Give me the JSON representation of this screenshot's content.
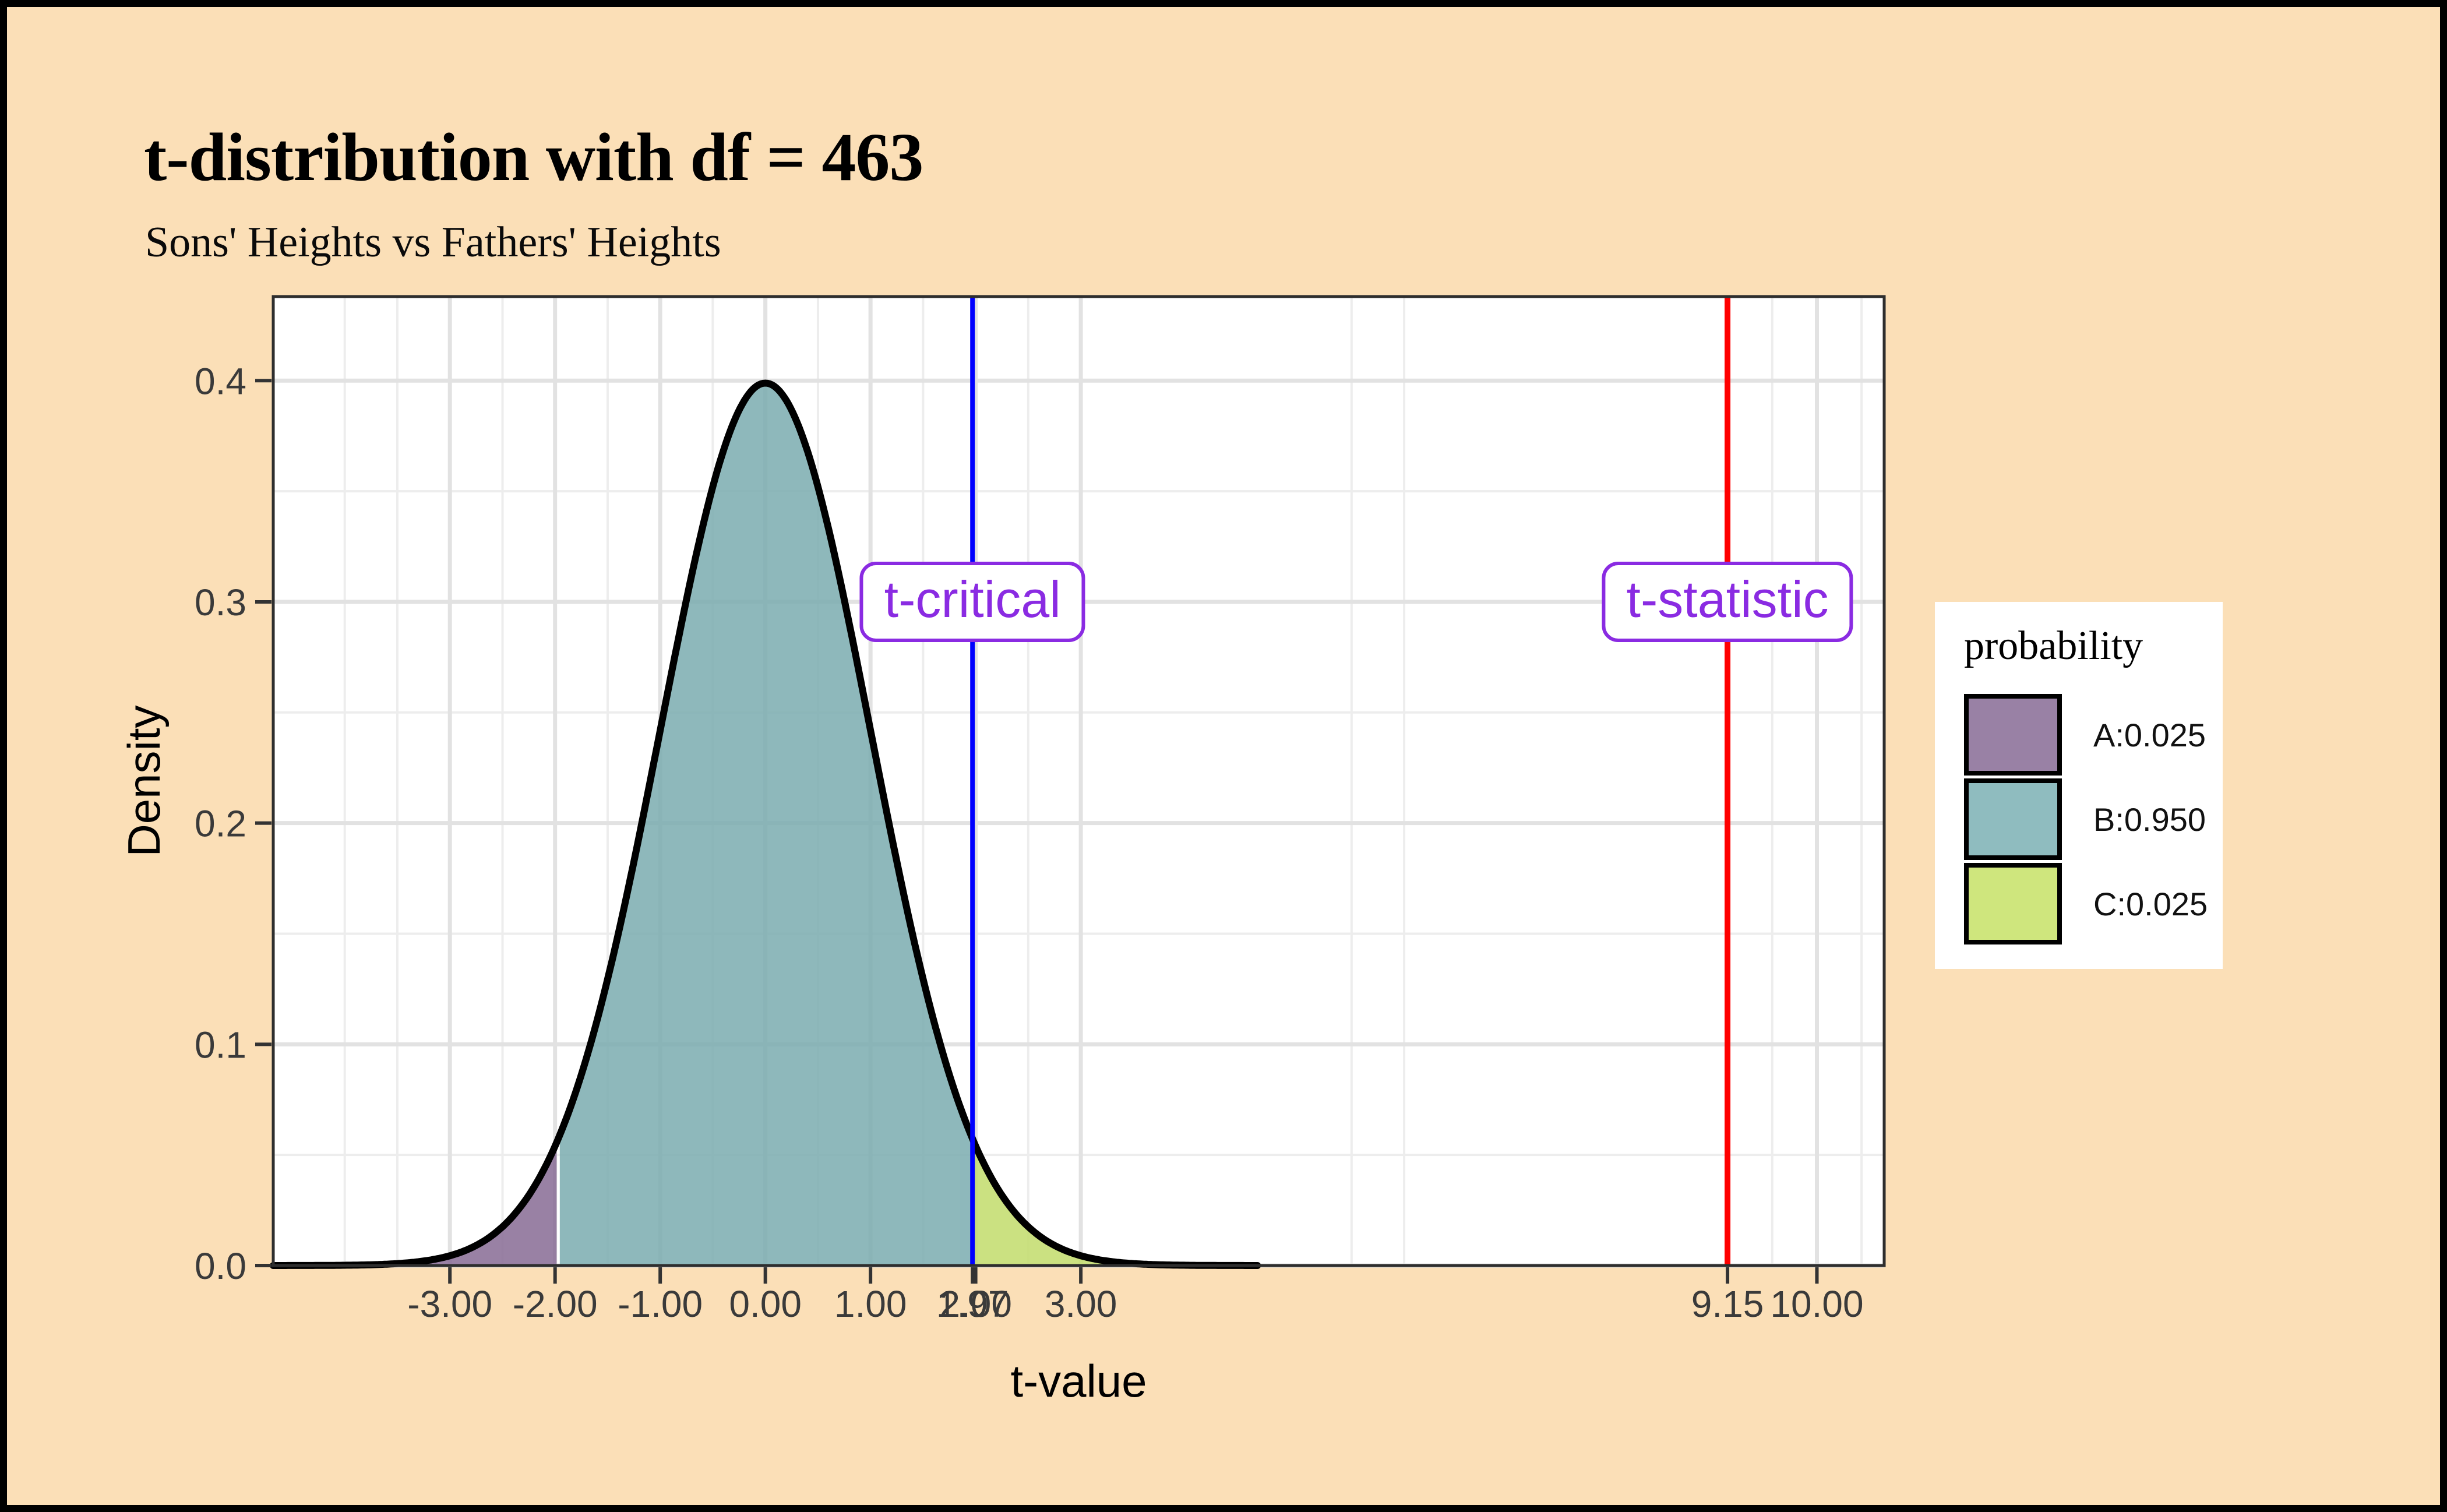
{
  "header": {
    "title": "t-distribution with df = 463",
    "subtitle": "Sons' Heights vs Fathers' Heights"
  },
  "legend": {
    "title": "probability",
    "items": [
      {
        "label": "A:0.025",
        "color": "#9981A5"
      },
      {
        "label": "B:0.950",
        "color": "#8FBCBF"
      },
      {
        "label": "C:0.025",
        "color": "#CFE67D"
      }
    ]
  },
  "chart_data": {
    "type": "area",
    "title": "t-distribution with df = 463",
    "subtitle": "Sons' Heights vs Fathers' Heights",
    "xlabel": "t-value",
    "ylabel": "Density",
    "xlim": [
      -4.68,
      10.64
    ],
    "ylim": [
      0,
      0.438
    ],
    "grid": "on",
    "legend_position": "right",
    "curve": {
      "distribution": "t",
      "df": 463,
      "mean": 0,
      "peak_density": 0.3989
    },
    "x_breaks": [
      {
        "t": -3,
        "label": "-3.00"
      },
      {
        "t": -2,
        "label": "-2.00"
      },
      {
        "t": -1,
        "label": "-1.00"
      },
      {
        "t": 0,
        "label": "0.00"
      },
      {
        "t": 1,
        "label": "1.00"
      },
      {
        "t": 1.97,
        "label": "1.97"
      },
      {
        "t": 2,
        "label": "2.00"
      },
      {
        "t": 3,
        "label": "3.00"
      },
      {
        "t": 9.15,
        "label": "9.15"
      },
      {
        "t": 10,
        "label": "10.00"
      }
    ],
    "x_minor_breaks": [
      -4,
      -3.5,
      -2.5,
      -1.5,
      -0.5,
      0.5,
      1.5,
      2.5,
      5.575,
      6.075,
      9.575,
      10.425
    ],
    "y_breaks": [
      {
        "d": 0.0,
        "label": "0.0"
      },
      {
        "d": 0.1,
        "label": "0.1"
      },
      {
        "d": 0.2,
        "label": "0.2"
      },
      {
        "d": 0.3,
        "label": "0.3"
      },
      {
        "d": 0.4,
        "label": "0.4"
      }
    ],
    "y_minor_breaks": [
      0.05,
      0.15,
      0.25,
      0.35
    ],
    "regions": [
      {
        "name": "A",
        "probability": 0.025,
        "from": -4.68,
        "to": -1.985,
        "fill": "#876B94"
      },
      {
        "name": "B",
        "probability": 0.95,
        "from": -1.955,
        "to": 1.955,
        "fill": "#7AABAF"
      },
      {
        "name": "C",
        "probability": 0.025,
        "from": 1.985,
        "to": 4.68,
        "fill": "#C2DC6B"
      }
    ],
    "region_fill_opacity": 0.85,
    "vlines": [
      {
        "t": 1.97,
        "color": "#0000FF",
        "width": 8,
        "label": "t-critical",
        "label_at_density": 0.3
      },
      {
        "t": 9.15,
        "color": "#FF0000",
        "width": 10,
        "label": "t-statistic",
        "label_at_density": 0.3
      }
    ],
    "colors": {
      "background": "#FBDFB7",
      "panel": "#FFFFFF",
      "panel_border": "#2E2E2E",
      "grid_major": "#E2E2E2",
      "grid_minor": "#EDEDED",
      "axis_text": "#3A3A3A",
      "axis_title": "#000000",
      "curve": "#000000",
      "annotation": "#8A2BE2"
    }
  }
}
